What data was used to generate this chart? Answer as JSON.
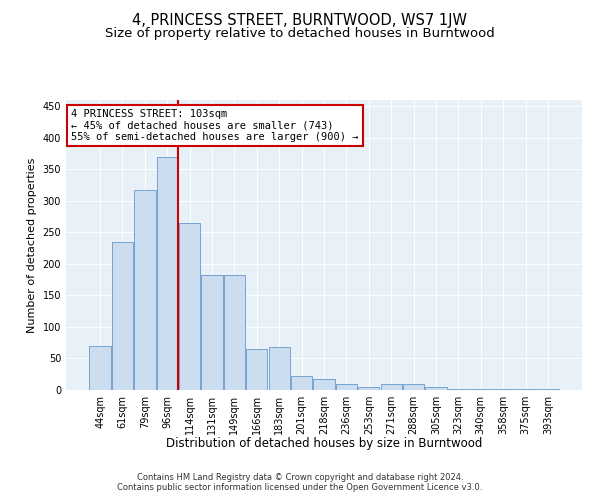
{
  "title": "4, PRINCESS STREET, BURNTWOOD, WS7 1JW",
  "subtitle": "Size of property relative to detached houses in Burntwood",
  "xlabel": "Distribution of detached houses by size in Burntwood",
  "ylabel": "Number of detached properties",
  "categories": [
    "44sqm",
    "61sqm",
    "79sqm",
    "96sqm",
    "114sqm",
    "131sqm",
    "149sqm",
    "166sqm",
    "183sqm",
    "201sqm",
    "218sqm",
    "236sqm",
    "253sqm",
    "271sqm",
    "288sqm",
    "305sqm",
    "323sqm",
    "340sqm",
    "358sqm",
    "375sqm",
    "393sqm"
  ],
  "values": [
    70,
    235,
    318,
    370,
    265,
    183,
    183,
    65,
    68,
    22,
    17,
    10,
    5,
    10,
    10,
    4,
    2,
    2,
    1,
    1,
    2
  ],
  "bar_color": "#ccddf0",
  "bar_edge_color": "#6699cc",
  "vline_color": "#cc0000",
  "vline_pos": 3.48,
  "annotation_text": "4 PRINCESS STREET: 103sqm\n← 45% of detached houses are smaller (743)\n55% of semi-detached houses are larger (900) →",
  "annotation_box_facecolor": "#ffffff",
  "annotation_box_edgecolor": "#cc0000",
  "ylim": [
    0,
    460
  ],
  "yticks": [
    0,
    50,
    100,
    150,
    200,
    250,
    300,
    350,
    400,
    450
  ],
  "background_color": "#e8f0f8",
  "footer_text": "Contains HM Land Registry data © Crown copyright and database right 2024.\nContains public sector information licensed under the Open Government Licence v3.0.",
  "title_fontsize": 10.5,
  "subtitle_fontsize": 9.5,
  "xlabel_fontsize": 8.5,
  "ylabel_fontsize": 8,
  "tick_fontsize": 7,
  "annotation_fontsize": 7.5,
  "footer_fontsize": 6
}
